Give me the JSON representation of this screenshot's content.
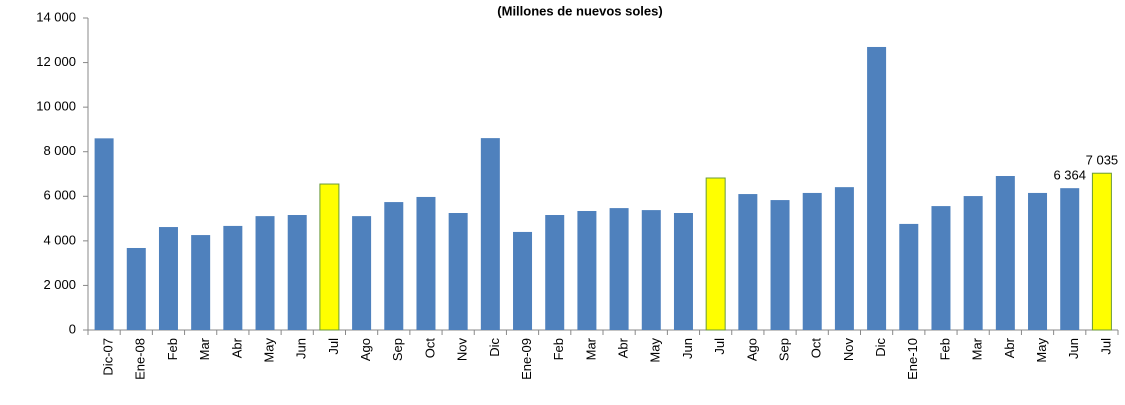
{
  "chart_data": {
    "type": "bar",
    "title": "(Millones de nuevos soles)",
    "categories": [
      "Dic-07",
      "Ene-08",
      "Feb",
      "Mar",
      "Abr",
      "May",
      "Jun",
      "Jul",
      "Ago",
      "Sep",
      "Oct",
      "Nov",
      "Dic",
      "Ene-09",
      "Feb",
      "Mar",
      "Abr",
      "May",
      "Jun",
      "Jul",
      "Ago",
      "Sep",
      "Oct",
      "Nov",
      "Dic",
      "Ene-10",
      "Feb",
      "Mar",
      "Abr",
      "May",
      "Jun",
      "Jul"
    ],
    "values": [
      8600,
      3680,
      4620,
      4260,
      4670,
      5110,
      5160,
      6550,
      5110,
      5740,
      5970,
      5250,
      8610,
      4400,
      5160,
      5340,
      5470,
      5380,
      5250,
      6820,
      6100,
      5830,
      6150,
      6410,
      12700,
      4760,
      5560,
      6010,
      6910,
      6150,
      6364,
      7035
    ],
    "value_labels": [
      null,
      null,
      null,
      null,
      null,
      null,
      null,
      null,
      null,
      null,
      null,
      null,
      null,
      null,
      null,
      null,
      null,
      null,
      null,
      null,
      null,
      null,
      null,
      null,
      null,
      null,
      null,
      null,
      null,
      null,
      "6 364",
      "7 035"
    ],
    "colors": [
      "#4f81bd",
      "#4f81bd",
      "#4f81bd",
      "#4f81bd",
      "#4f81bd",
      "#4f81bd",
      "#4f81bd",
      "#ffff00",
      "#4f81bd",
      "#4f81bd",
      "#4f81bd",
      "#4f81bd",
      "#4f81bd",
      "#4f81bd",
      "#4f81bd",
      "#4f81bd",
      "#4f81bd",
      "#4f81bd",
      "#4f81bd",
      "#ffff00",
      "#4f81bd",
      "#4f81bd",
      "#4f81bd",
      "#4f81bd",
      "#4f81bd",
      "#4f81bd",
      "#4f81bd",
      "#4f81bd",
      "#4f81bd",
      "#4f81bd",
      "#4f81bd",
      "#ffff00"
    ],
    "ylim": [
      0,
      14000
    ],
    "yticks": [
      {
        "value": 0,
        "label": "0"
      },
      {
        "value": 2000,
        "label": "2 000"
      },
      {
        "value": 4000,
        "label": "4 000"
      },
      {
        "value": 6000,
        "label": "6 000"
      },
      {
        "value": 8000,
        "label": "8 000"
      },
      {
        "value": 10000,
        "label": "10 000"
      },
      {
        "value": 12000,
        "label": "12 000"
      },
      {
        "value": 14000,
        "label": "14 000"
      }
    ],
    "grid": false
  }
}
